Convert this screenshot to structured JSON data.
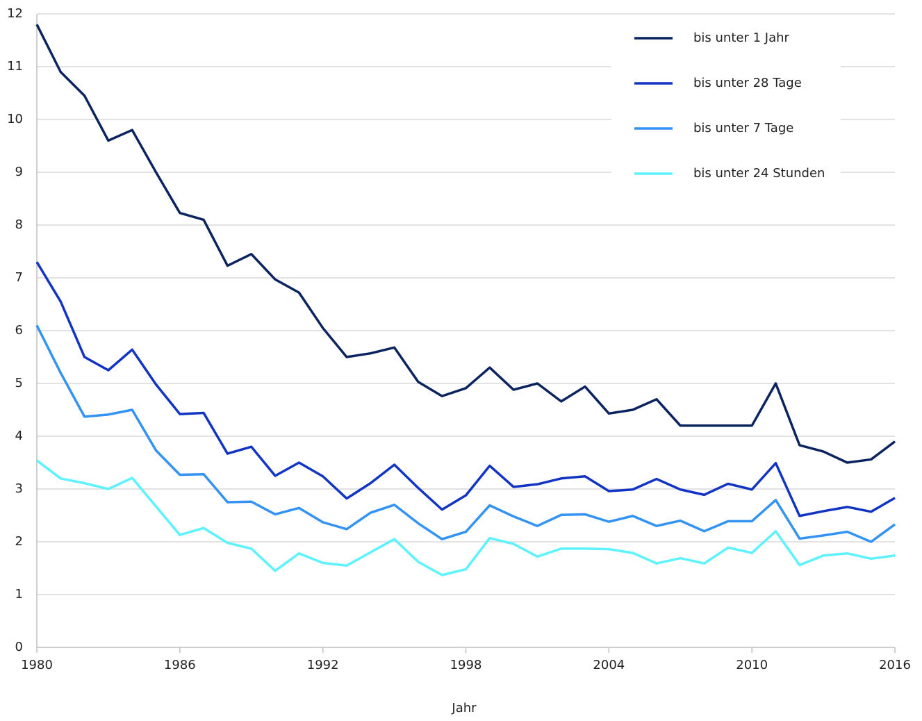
{
  "chart_data": {
    "type": "line",
    "x_label": "Jahr",
    "x": [
      1980,
      1981,
      1982,
      1983,
      1984,
      1985,
      1986,
      1987,
      1988,
      1989,
      1990,
      1991,
      1992,
      1993,
      1994,
      1995,
      1996,
      1997,
      1998,
      1999,
      2000,
      2001,
      2002,
      2003,
      2004,
      2005,
      2006,
      2007,
      2008,
      2009,
      2010,
      2011,
      2012,
      2013,
      2014,
      2015,
      2016
    ],
    "xlim": [
      1980,
      2016
    ],
    "xticks": [
      1980,
      1986,
      1992,
      1998,
      2004,
      2010,
      2016
    ],
    "ylim": [
      0,
      12
    ],
    "yticks": [
      0,
      1,
      2,
      3,
      4,
      5,
      6,
      7,
      8,
      9,
      10,
      11,
      12
    ],
    "grid": true,
    "legend": "top-right",
    "series": [
      {
        "name": "bis unter 1 Jahr",
        "color": "#0b2460",
        "values": [
          11.8,
          10.9,
          10.45,
          9.6,
          9.8,
          9.0,
          8.23,
          8.1,
          7.23,
          7.45,
          6.97,
          6.72,
          6.05,
          5.5,
          5.57,
          5.68,
          5.03,
          4.76,
          4.91,
          5.3,
          4.88,
          5.0,
          4.66,
          4.94,
          4.43,
          4.5,
          4.7,
          4.2,
          4.2,
          4.2,
          4.2,
          5.0,
          3.83,
          3.71,
          3.5,
          3.56,
          3.9
        ]
      },
      {
        "name": "bis unter 28 Tage",
        "color": "#1134c4",
        "values": [
          7.3,
          6.55,
          5.5,
          5.25,
          5.64,
          4.98,
          4.42,
          4.44,
          3.67,
          3.8,
          3.25,
          3.5,
          3.24,
          2.82,
          3.11,
          3.46,
          3.02,
          2.61,
          2.88,
          3.44,
          3.04,
          3.09,
          3.2,
          3.24,
          2.96,
          2.99,
          3.19,
          2.99,
          2.89,
          3.1,
          2.99,
          3.49,
          2.49,
          2.58,
          2.66,
          2.57,
          2.83
        ]
      },
      {
        "name": "bis unter 7 Tage",
        "color": "#3393f5",
        "values": [
          6.1,
          5.2,
          4.37,
          4.41,
          4.5,
          3.73,
          3.27,
          3.28,
          2.75,
          2.76,
          2.52,
          2.64,
          2.37,
          2.24,
          2.55,
          2.7,
          2.35,
          2.05,
          2.19,
          2.69,
          2.48,
          2.3,
          2.51,
          2.52,
          2.38,
          2.49,
          2.3,
          2.4,
          2.2,
          2.39,
          2.39,
          2.79,
          2.06,
          2.12,
          2.19,
          2.0,
          2.33
        ]
      },
      {
        "name": "bis unter 24 Stunden",
        "color": "#5ef2ff",
        "values": [
          3.54,
          3.2,
          3.11,
          3.0,
          3.21,
          2.67,
          2.13,
          2.26,
          1.98,
          1.87,
          1.45,
          1.78,
          1.6,
          1.55,
          1.8,
          2.05,
          1.62,
          1.37,
          1.48,
          2.07,
          1.96,
          1.72,
          1.87,
          1.87,
          1.86,
          1.79,
          1.59,
          1.69,
          1.59,
          1.89,
          1.79,
          2.2,
          1.56,
          1.74,
          1.78,
          1.68,
          1.74
        ]
      }
    ]
  }
}
